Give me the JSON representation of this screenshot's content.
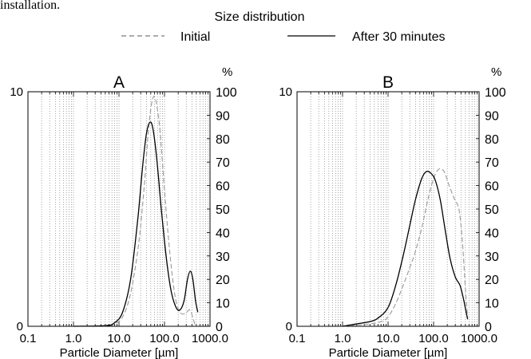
{
  "top_caption": "installation.",
  "legend": {
    "title": "Size distribution",
    "entries": [
      {
        "label": "Initial",
        "style": "dashed"
      },
      {
        "label": "After 30 minutes",
        "style": "solid"
      }
    ]
  },
  "colors": {
    "initial": "#9a9a9a",
    "after": "#000000",
    "grid": "#7f7f7f",
    "axis": "#000000"
  },
  "chart_data": [
    {
      "type": "line",
      "title": "A",
      "xlabel": "Particle Diameter  [µm]",
      "ylabel": "",
      "y2label": "%",
      "x_scale": "log",
      "xlim": [
        0.1,
        1000
      ],
      "ylim": [
        0,
        10
      ],
      "y2lim": [
        0,
        100
      ],
      "grid": "vertical",
      "x_ticks": [
        "0.1",
        "1.0",
        "10.0",
        "100.0",
        "1000.0"
      ],
      "y_ticks_left": [
        "0",
        "10"
      ],
      "y_ticks_right": [
        "0",
        "10",
        "20",
        "30",
        "40",
        "50",
        "60",
        "70",
        "80",
        "90",
        "100"
      ],
      "series": [
        {
          "name": "Initial",
          "style": "dashed",
          "x": [
            1.0,
            5.0,
            8.0,
            12.0,
            18.0,
            27.0,
            36.0,
            45.0,
            55.0,
            65.0,
            80.0,
            100.0,
            130.0,
            170.0,
            220.0,
            290.0,
            360.0,
            430.0,
            480.0
          ],
          "y": [
            0.0,
            0.02,
            0.1,
            0.4,
            1.4,
            3.5,
            6.0,
            8.5,
            9.7,
            9.6,
            8.3,
            5.8,
            3.2,
            1.3,
            0.6,
            0.55,
            0.7,
            0.3,
            0.0
          ]
        },
        {
          "name": "After 30 minutes",
          "style": "solid",
          "x": [
            1.0,
            5.0,
            8.0,
            12.0,
            18.0,
            26.0,
            33.0,
            40.0,
            48.0,
            56.0,
            68.0,
            85.0,
            110.0,
            140.0,
            180.0,
            220.0,
            270.0,
            320.0,
            370.0,
            420.0,
            480.0,
            540.0
          ],
          "y": [
            0.0,
            0.03,
            0.15,
            0.6,
            2.0,
            4.6,
            6.8,
            8.2,
            8.7,
            8.4,
            7.1,
            5.0,
            2.9,
            1.5,
            0.8,
            0.7,
            1.1,
            2.0,
            2.35,
            2.0,
            1.1,
            0.6
          ]
        }
      ]
    },
    {
      "type": "line",
      "title": "B",
      "xlabel": "Particle Diameter  [µm]",
      "ylabel": "",
      "y2label": "%",
      "x_scale": "log",
      "xlim": [
        0.1,
        1000
      ],
      "ylim": [
        0,
        10
      ],
      "y2lim": [
        0,
        100
      ],
      "grid": "vertical",
      "x_ticks": [
        "0.1",
        "1.0",
        "10.0",
        "100.0",
        "1000.0"
      ],
      "y_ticks_left": [
        "0",
        "10"
      ],
      "y_ticks_right": [
        "0",
        "10",
        "20",
        "30",
        "40",
        "50",
        "60",
        "70",
        "80",
        "90",
        "100"
      ],
      "series": [
        {
          "name": "Initial",
          "style": "dashed",
          "x": [
            1.0,
            2.0,
            4.0,
            7.0,
            10.0,
            15.0,
            22.0,
            30.0,
            40.0,
            55.0,
            75.0,
            100.0,
            130.0,
            170.0,
            220.0,
            290.0,
            360.0,
            430.0,
            500.0,
            560.0
          ],
          "y": [
            0.0,
            0.05,
            0.1,
            0.2,
            0.4,
            1.0,
            1.8,
            2.5,
            3.2,
            4.2,
            5.4,
            6.3,
            6.7,
            6.6,
            6.0,
            5.4,
            5.0,
            3.6,
            1.6,
            0.4
          ]
        },
        {
          "name": "After 30 minutes",
          "style": "solid",
          "x": [
            1.0,
            2.0,
            4.0,
            6.0,
            10.0,
            15.0,
            22.0,
            30.0,
            40.0,
            55.0,
            70.0,
            90.0,
            110.0,
            140.0,
            180.0,
            230.0,
            300.0,
            380.0,
            450.0,
            520.0,
            560.0
          ],
          "y": [
            0.0,
            0.1,
            0.2,
            0.35,
            0.8,
            1.8,
            3.1,
            4.3,
            5.4,
            6.3,
            6.6,
            6.5,
            6.2,
            5.4,
            4.1,
            2.9,
            2.1,
            1.75,
            1.2,
            0.6,
            0.3
          ]
        }
      ]
    }
  ]
}
